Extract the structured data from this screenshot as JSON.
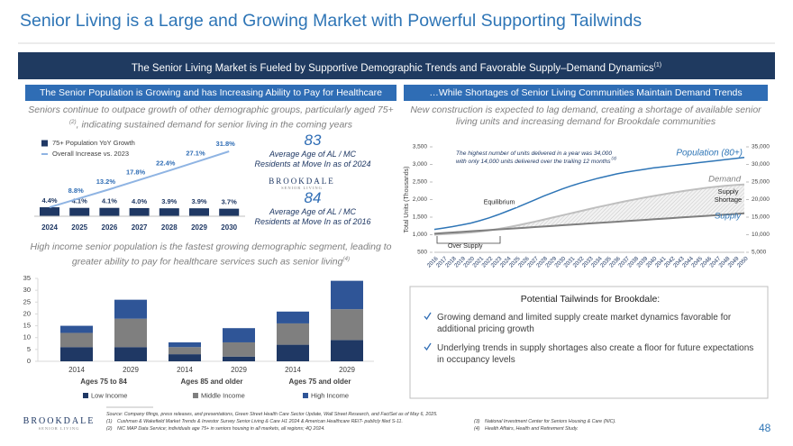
{
  "title": "Senior Living is a Large and Growing Market with Powerful Supporting Tailwinds",
  "banner": {
    "text": "The Senior Living Market is Fueled by Supportive Demographic Trends and Favorable Supply–Demand Dynamics",
    "note": "(1)"
  },
  "left_panel": {
    "header": "The Senior Population is Growing and has Increasing Ability to Pay for Healthcare",
    "intro": [
      "Seniors continue to outpace growth of other demographic groups, particularly aged 75+",
      "(2)",
      ", indicating sustained demand for senior living in the coming years"
    ],
    "stats": [
      {
        "value": "83",
        "text": "Average Age of AL / MC Residents at Move In as of 2024"
      },
      {
        "value": "84",
        "text": "Average Age of AL / MC Residents at Move In as of 2016"
      }
    ],
    "logo": {
      "name": "BROOKDALE",
      "tagline": "SENIOR LIVING"
    },
    "income_note": [
      "High income senior population is the fastest growing demographic segment, leading to greater ability to pay for healthcare services such as senior living",
      "(4)"
    ]
  },
  "right_panel": {
    "header": "…While Shortages of Senior Living Communities Maintain Demand Trends",
    "intro": "New construction is expected to lag demand, creating a shortage of available senior living units and increasing demand for Brookdale communities",
    "tailwinds": {
      "title": "Potential Tailwinds for Brookdale:",
      "bullets": [
        "Growing demand and limited supply create market dynamics favorable for additional pricing growth",
        "Underlying trends in supply shortages also create a floor for future expectations in occupancy levels"
      ]
    }
  },
  "footer": {
    "logo": {
      "name": "BROOKDALE",
      "tagline": "SENIOR LIVING"
    },
    "source": "Source: Company filings, press releases, and presentations, Green Street Health Care Sector Update, Wall Street Research, and FactSet as of May 6, 2025.",
    "notes": [
      {
        "ref": "(1)",
        "text": "Cushman & Wakefield Market Trends & Investor Survey Senior Living & Care H1 2024 & American Healthcare REIT- publicly filed S-11."
      },
      {
        "ref": "(2)",
        "text": "NIC MAP Data Service; individuals age 75+ in seniors housing in all markets, all regions; 4Q 2024."
      },
      {
        "ref": "(3)",
        "text": "National Investment Center for Seniors Housing & Care (NIC)."
      },
      {
        "ref": "(4)",
        "text": "Health Affairs, Health and Retirement Study."
      }
    ],
    "page": "48"
  },
  "chart_data": [
    {
      "type": "bar_line",
      "categories": [
        "2024",
        "2025",
        "2026",
        "2027",
        "2028",
        "2029",
        "2030"
      ],
      "series": [
        {
          "name": "75+ Population YoY Growth",
          "type": "bar",
          "color": "#1f3864",
          "values": [
            4.4,
            4.1,
            4.1,
            4.0,
            3.9,
            3.9,
            3.7
          ],
          "value_labels": [
            "4.4%",
            "4.1%",
            "4.1%",
            "4.0%",
            "3.9%",
            "3.9%",
            "3.7%"
          ]
        },
        {
          "name": "Overall Increase vs. 2023",
          "type": "line",
          "color": "#8fb4e3",
          "values": [
            4.4,
            8.8,
            13.2,
            17.8,
            22.4,
            27.1,
            31.8
          ],
          "value_labels": [
            null,
            "8.8%",
            "13.2%",
            "17.8%",
            "22.4%",
            "27.1%",
            "31.8%"
          ]
        }
      ]
    },
    {
      "type": "stacked_bar",
      "categories": [
        "2014",
        "2029",
        "2014",
        "2029",
        "2014",
        "2029"
      ],
      "groups": [
        "Ages 75 to 84",
        "Ages 85 and older",
        "Ages 75 and older"
      ],
      "series": [
        {
          "name": "Low Income",
          "color": "#1f3864",
          "values": [
            6,
            6,
            3,
            2,
            7,
            9
          ]
        },
        {
          "name": "Middle Income",
          "color": "#7f7f7f",
          "values": [
            6,
            12,
            3,
            6,
            9,
            13
          ]
        },
        {
          "name": "High Income",
          "color": "#2f5597",
          "values": [
            3,
            8,
            2,
            6,
            5,
            12
          ]
        }
      ],
      "ylim": [
        0,
        35
      ],
      "yticks": [
        0,
        5,
        10,
        15,
        20,
        25,
        30,
        35
      ]
    },
    {
      "type": "line",
      "y_label": "Total Units (Thousands)",
      "categories": [
        "2016",
        "2017",
        "2018",
        "2019",
        "2020",
        "2021",
        "2022",
        "2023",
        "2024",
        "2025",
        "2026",
        "2027",
        "2028",
        "2029",
        "2030",
        "2031",
        "2032",
        "2033",
        "2034",
        "2035",
        "2036",
        "2037",
        "2038",
        "2039",
        "2040",
        "2041",
        "2042",
        "2043",
        "2044",
        "2045",
        "2046",
        "2047",
        "2048",
        "2049",
        "2050"
      ],
      "series": [
        {
          "name": "Population (80+)",
          "color": "#2e75b6",
          "axis": "y2",
          "values": [
            11500,
            11900,
            12300,
            12800,
            13300,
            14000,
            14800,
            15700,
            16700,
            17700,
            18800,
            19900,
            21000,
            22000,
            23000,
            23900,
            24700,
            25400,
            26100,
            26700,
            27300,
            27800,
            28200,
            28600,
            29000,
            29300,
            29600,
            29900,
            30200,
            30500,
            30800,
            31100,
            31400,
            31700,
            32000
          ]
        },
        {
          "name": "Demand",
          "color": "#bfbfbf",
          "values": [
            1000,
            1015,
            1030,
            1045,
            1065,
            1090,
            1125,
            1165,
            1210,
            1260,
            1315,
            1370,
            1430,
            1490,
            1550,
            1610,
            1670,
            1730,
            1790,
            1845,
            1900,
            1955,
            2005,
            2055,
            2100,
            2145,
            2190,
            2230,
            2270,
            2305,
            2340,
            2370,
            2395,
            2415,
            2430
          ]
        },
        {
          "name": "Supply",
          "color": "#7f7f7f",
          "values": [
            1030,
            1047,
            1064,
            1081,
            1098,
            1115,
            1132,
            1149,
            1166,
            1183,
            1200,
            1217,
            1234,
            1251,
            1268,
            1285,
            1302,
            1319,
            1336,
            1353,
            1370,
            1387,
            1404,
            1421,
            1438,
            1455,
            1472,
            1489,
            1506,
            1523,
            1540,
            1557,
            1574,
            1591,
            1608
          ]
        }
      ],
      "ylim": [
        500,
        3500
      ],
      "yticks": [
        500,
        {
          "value": 1000,
          "label": "1,000"
        },
        {
          "value": 1500,
          "label": "1,500"
        },
        {
          "value": 2000,
          "label": "2,000"
        },
        {
          "value": 2500,
          "label": "2,500"
        },
        {
          "value": 3000,
          "label": "3,000"
        },
        {
          "value": 3500,
          "label": "3,500"
        }
      ],
      "y2lim": [
        5000,
        35000
      ],
      "y2ticks": [
        {
          "value": 5000,
          "label": "5,000"
        },
        {
          "value": 10000,
          "label": "10,000"
        },
        {
          "value": 15000,
          "label": "15,000"
        },
        {
          "value": 20000,
          "label": "20,000"
        },
        {
          "value": 25000,
          "label": "25,000"
        },
        {
          "value": 30000,
          "label": "30,000"
        },
        {
          "value": 35000,
          "label": "35,000"
        }
      ],
      "annotations": {
        "note": [
          "The highest number of units delivered in a year was 34,000",
          "with only 14,000 units delivered over the trailing 12 months"
        ],
        "note_ref": "(3)",
        "shortage": [
          "Supply",
          "Shortage"
        ],
        "equilibrium": "Equilibrium",
        "oversupply": "Over Supply"
      }
    }
  ]
}
